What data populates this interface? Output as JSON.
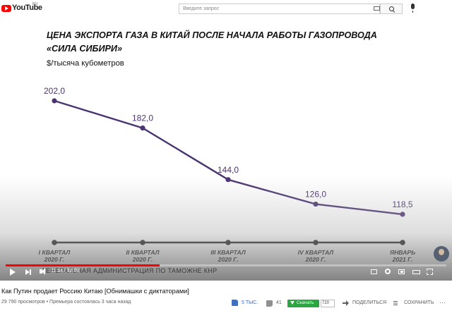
{
  "header": {
    "logo_text": "YouTube",
    "region": "RU",
    "search_placeholder": "Введите запрос",
    "icons": [
      "keyboard-icon",
      "search-icon",
      "mic-icon"
    ]
  },
  "player": {
    "source_caption": "ГЕНЕРАЛЬНАЯ АДМИНИСТРАЦИЯ ПО ТАМОЖНЕ КНР",
    "time_current": "11:14",
    "time_total": "32:03",
    "progress_fraction": 0.35,
    "accent_color": "#ff0000"
  },
  "chart_data": {
    "type": "line",
    "title": "ЦЕНА ЭКСПОРТА ГАЗА В КИТАЙ ПОСЛЕ НАЧАЛА РАБОТЫ ГАЗОПРОВОДА\n«СИЛА СИБИРИ»",
    "ylabel": "$/тысяча кубометров",
    "categories": [
      [
        "I КВАРТАЛ",
        "2020 Г."
      ],
      [
        "II КВАРТАЛ",
        "2020 Г."
      ],
      [
        "III КВАРТАЛ",
        "2020 Г."
      ],
      [
        "IV КВАРТАЛ",
        "2020 Г."
      ],
      [
        "ЯНВАРЬ",
        "2021 Г."
      ]
    ],
    "values": [
      202.0,
      182.0,
      144.0,
      126.0,
      118.5
    ],
    "value_labels": [
      "202,0",
      "182,0",
      "144,0",
      "126,0",
      "118,5"
    ],
    "line_color": "#4b3472",
    "ylim": [
      100,
      210
    ]
  },
  "video": {
    "title": "Как Путин продает Россию Китаю [Обнимашки с диктаторами]",
    "view_info": "29 790 просмотров • Премьера состоялась 3 часа назад",
    "likes": "5 ТЫС.",
    "dislikes": "41",
    "download_label": "Скачать",
    "quality": "720",
    "share_label": "ПОДЕЛИТЬСЯ",
    "save_label": "СОХРАНИТЬ"
  }
}
